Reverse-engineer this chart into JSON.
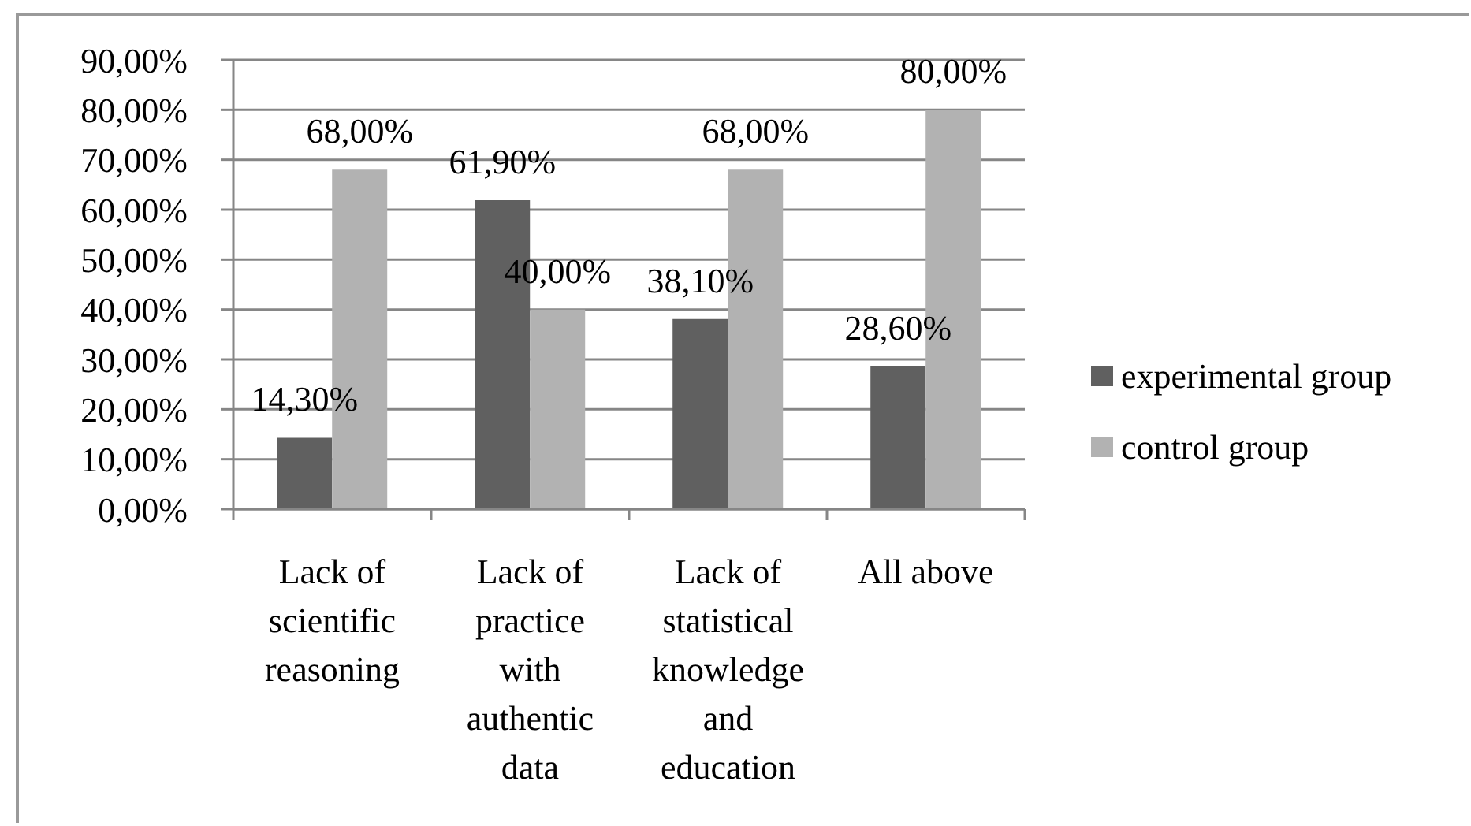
{
  "chart_data": {
    "type": "bar",
    "categories": [
      "Lack of scientific reasoning",
      "Lack of practice with authentic data",
      "Lack of statistical knowledge and education",
      "All above"
    ],
    "series": [
      {
        "name": "experimental group",
        "color": "#606060",
        "values": [
          14.3,
          61.9,
          38.1,
          28.6
        ],
        "value_labels": [
          "14,30%",
          "61,90%",
          "38,10%",
          "28,60%"
        ]
      },
      {
        "name": "control group",
        "color": "#b2b2b2",
        "values": [
          68,
          40,
          68,
          80
        ],
        "value_labels": [
          "68,00%",
          "40,00%",
          "68,00%",
          "80,00%"
        ]
      }
    ],
    "ylim": [
      0,
      90
    ],
    "yticks": [
      {
        "value": 0,
        "label": "0,00%"
      },
      {
        "value": 10,
        "label": "10,00%"
      },
      {
        "value": 20,
        "label": "20,00%"
      },
      {
        "value": 30,
        "label": "30,00%"
      },
      {
        "value": 40,
        "label": "40,00%"
      },
      {
        "value": 50,
        "label": "50,00%"
      },
      {
        "value": 60,
        "label": "60,00%"
      },
      {
        "value": 70,
        "label": "70,00%"
      },
      {
        "value": 80,
        "label": "80,00%"
      },
      {
        "value": 90,
        "label": "90,00%"
      }
    ],
    "grid": "y",
    "legend": "right"
  }
}
